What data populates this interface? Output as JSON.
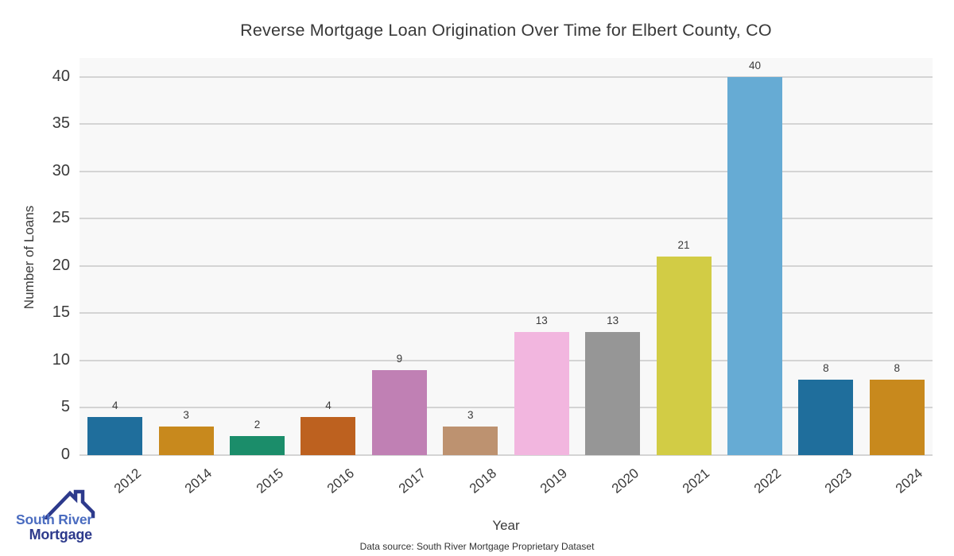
{
  "title": "Reverse Mortgage Loan Origination Over Time for Elbert County, CO",
  "chart_data": {
    "type": "bar",
    "categories": [
      "2012",
      "2014",
      "2015",
      "2016",
      "2017",
      "2018",
      "2019",
      "2020",
      "2021",
      "2022",
      "2023",
      "2024"
    ],
    "values": [
      4,
      3,
      2,
      4,
      9,
      3,
      13,
      13,
      21,
      40,
      8,
      8
    ],
    "bar_colors": [
      "#1f6e9c",
      "#c8891d",
      "#1b8d6a",
      "#bd611f",
      "#c080b4",
      "#bd9270",
      "#f2b6df",
      "#969696",
      "#d2cc45",
      "#66abd4",
      "#1f6e9c",
      "#c8891d"
    ],
    "title": "Reverse Mortgage Loan Origination Over Time for Elbert County, CO",
    "xlabel": "Year",
    "ylabel": "Number of Loans",
    "ylim": [
      0,
      42
    ],
    "yticks": [
      0,
      5,
      10,
      15,
      20,
      25,
      30,
      35,
      40
    ],
    "grid": true,
    "legend": false,
    "plot_background": "#f8f8f8",
    "gridline_color": "#d4d4d4"
  },
  "footer": {
    "data_source": "Data source: South River Mortgage Proprietary Dataset"
  },
  "logo": {
    "line1": "South River",
    "line2": "Mortgage",
    "color_primary": "#4a6cc0",
    "color_secondary": "#2d3a8c",
    "icon": "house-roof-icon"
  }
}
